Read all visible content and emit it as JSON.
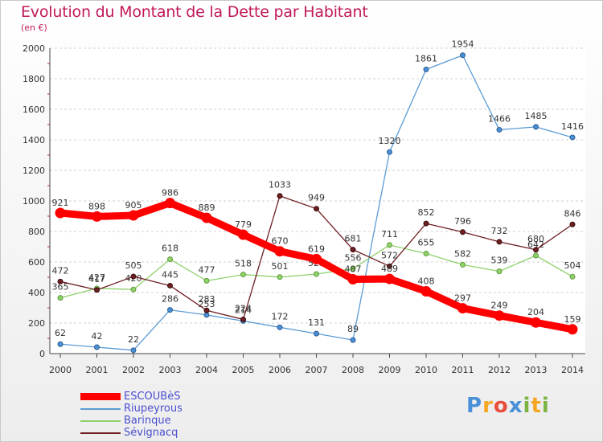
{
  "header": {
    "title": "Evolution du Montant de la Dette par Habitant",
    "unit": "(en €)"
  },
  "brand": {
    "text": "Proxiti"
  },
  "chart_data": {
    "type": "line",
    "x": [
      2000,
      2001,
      2002,
      2003,
      2004,
      2005,
      2006,
      2007,
      2008,
      2009,
      2010,
      2011,
      2012,
      2013,
      2014
    ],
    "ylim": [
      0,
      2000
    ],
    "yticks": [
      0,
      200,
      400,
      600,
      800,
      1000,
      1200,
      1400,
      1600,
      1800,
      2000
    ],
    "grid": "horizontal-dashed",
    "legend_position": "bottom-left",
    "series": [
      {
        "name": "Riupeyrous",
        "color": "#5b9bd5",
        "values": [
          62,
          42,
          22,
          286,
          253,
          214,
          172,
          131,
          89,
          1320,
          1861,
          1954,
          1466,
          1485,
          1416
        ]
      },
      {
        "name": "Barinque",
        "color": "#8fd16a",
        "values": [
          365,
          427,
          420,
          618,
          477,
          518,
          501,
          521,
          556,
          711,
          655,
          582,
          539,
          642,
          504
        ]
      },
      {
        "name": "Sévignacq",
        "color": "#6d1f22",
        "values": [
          472,
          417,
          505,
          445,
          283,
          224,
          1033,
          949,
          681,
          572,
          852,
          796,
          732,
          680,
          846
        ]
      },
      {
        "name": "ESCOUBèS",
        "color": "#ff0000",
        "values": [
          921,
          898,
          905,
          986,
          889,
          779,
          670,
          619,
          487,
          489,
          408,
          297,
          249,
          204,
          159
        ]
      }
    ]
  }
}
